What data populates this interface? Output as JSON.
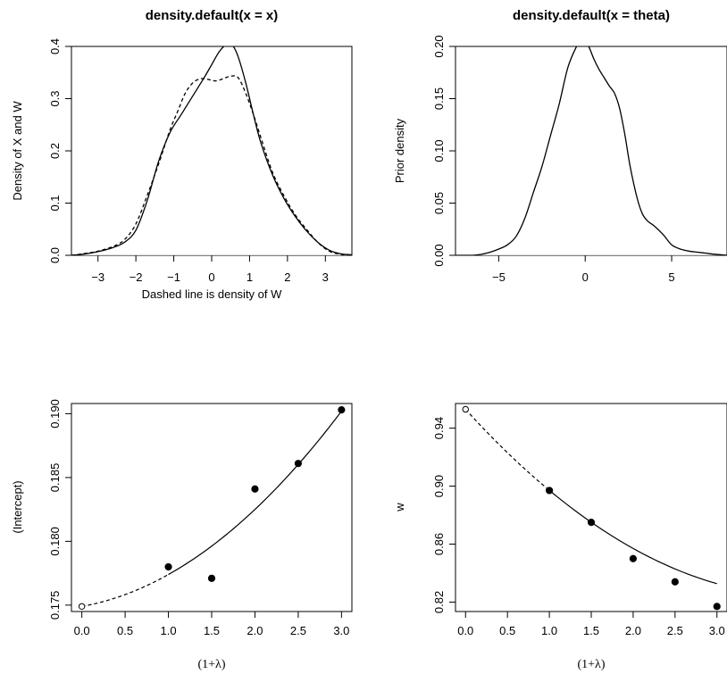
{
  "chart_data": [
    {
      "type": "line",
      "title": "density.default(x = x)",
      "xlabel": "Dashed line is density of W",
      "ylabel": "Density of X and W",
      "xlim": [
        -3.7,
        3.7
      ],
      "ylim": [
        0,
        0.4
      ],
      "xticks": [
        -3,
        -2,
        -1,
        0,
        1,
        2,
        3
      ],
      "yticks": [
        0.0,
        0.1,
        0.2,
        0.3,
        0.4
      ],
      "xtick_labels": [
        "−3",
        "−2",
        "−1",
        "0",
        "1",
        "2",
        "3"
      ],
      "ytick_labels": [
        "0.0",
        "0.1",
        "0.2",
        "0.3",
        "0.4"
      ],
      "zero_line": true,
      "series": [
        {
          "style": "solid",
          "x": [
            -3.7,
            -3.4,
            -3.0,
            -2.6,
            -2.3,
            -2.0,
            -1.7,
            -1.4,
            -1.1,
            -0.8,
            -0.5,
            -0.2,
            0.0,
            0.2,
            0.4,
            0.55,
            0.7,
            0.9,
            1.1,
            1.3,
            1.6,
            1.9,
            2.2,
            2.5,
            2.8,
            3.1,
            3.4,
            3.7
          ],
          "y": [
            0.0,
            0.002,
            0.007,
            0.015,
            0.025,
            0.048,
            0.105,
            0.18,
            0.235,
            0.27,
            0.305,
            0.34,
            0.365,
            0.39,
            0.404,
            0.402,
            0.38,
            0.33,
            0.27,
            0.215,
            0.155,
            0.11,
            0.075,
            0.047,
            0.025,
            0.01,
            0.003,
            0.001
          ]
        },
        {
          "style": "dashed",
          "x": [
            -3.7,
            -3.4,
            -3.0,
            -2.6,
            -2.3,
            -2.0,
            -1.7,
            -1.4,
            -1.1,
            -0.9,
            -0.7,
            -0.5,
            -0.3,
            -0.1,
            0.1,
            0.3,
            0.5,
            0.7,
            0.9,
            1.1,
            1.3,
            1.6,
            1.9,
            2.2,
            2.5,
            2.8,
            3.1,
            3.4,
            3.7
          ],
          "y": [
            0.0,
            0.003,
            0.008,
            0.017,
            0.03,
            0.06,
            0.115,
            0.175,
            0.24,
            0.275,
            0.31,
            0.33,
            0.338,
            0.337,
            0.334,
            0.338,
            0.343,
            0.34,
            0.31,
            0.27,
            0.225,
            0.16,
            0.115,
            0.078,
            0.05,
            0.025,
            0.008,
            0.002,
            0.0
          ]
        }
      ]
    },
    {
      "type": "line",
      "title": "density.default(x = theta)",
      "xlabel": "",
      "ylabel": "Prior density",
      "xlim": [
        -7.5,
        8.2
      ],
      "ylim": [
        0,
        0.2
      ],
      "xticks": [
        -5,
        0,
        5
      ],
      "yticks": [
        0.0,
        0.05,
        0.1,
        0.15,
        0.2
      ],
      "xtick_labels": [
        "−5",
        "0",
        "5"
      ],
      "ytick_labels": [
        "0.00",
        "0.05",
        "0.10",
        "0.15",
        "0.20"
      ],
      "zero_line": true,
      "series": [
        {
          "style": "solid",
          "x": [
            -7.5,
            -6.5,
            -6.0,
            -5.5,
            -5.0,
            -4.5,
            -4.0,
            -3.5,
            -3.0,
            -2.5,
            -2.0,
            -1.5,
            -1.0,
            -0.5,
            -0.3,
            -0.1,
            0.2,
            0.5,
            0.8,
            1.1,
            1.4,
            1.7,
            2.0,
            2.3,
            2.6,
            3.0,
            3.3,
            3.6,
            4.0,
            4.5,
            5.0,
            5.5,
            6.0,
            6.5,
            7.0,
            7.5,
            8.2
          ],
          "y": [
            0.0,
            0.0,
            0.001,
            0.003,
            0.006,
            0.01,
            0.018,
            0.035,
            0.06,
            0.085,
            0.115,
            0.145,
            0.18,
            0.2,
            0.205,
            0.205,
            0.2,
            0.188,
            0.178,
            0.17,
            0.162,
            0.155,
            0.14,
            0.115,
            0.085,
            0.055,
            0.04,
            0.033,
            0.028,
            0.02,
            0.01,
            0.006,
            0.004,
            0.003,
            0.002,
            0.001,
            0.0
          ]
        }
      ]
    },
    {
      "type": "scatter",
      "title": "",
      "xlabel": "(1+λ)",
      "ylabel": "(Intercept)",
      "xlim": [
        -0.12,
        3.12
      ],
      "ylim": [
        0.1745,
        0.1908
      ],
      "xticks": [
        0.0,
        0.5,
        1.0,
        1.5,
        2.0,
        2.5,
        3.0
      ],
      "yticks": [
        0.175,
        0.18,
        0.185,
        0.19
      ],
      "xtick_labels": [
        "0.0",
        "0.5",
        "1.0",
        "1.5",
        "2.0",
        "2.5",
        "3.0"
      ],
      "ytick_labels": [
        "0.175",
        "0.180",
        "0.185",
        "0.190"
      ],
      "points": [
        {
          "x": 1.0,
          "y": 0.178,
          "filled": true
        },
        {
          "x": 1.5,
          "y": 0.1771,
          "filled": true
        },
        {
          "x": 2.0,
          "y": 0.1841,
          "filled": true
        },
        {
          "x": 2.5,
          "y": 0.1861,
          "filled": true
        },
        {
          "x": 3.0,
          "y": 0.1903,
          "filled": true
        },
        {
          "x": 0.0,
          "y": 0.1749,
          "filled": false
        }
      ],
      "fit_quadratic": [
        0.1749,
        0.0012,
        0.0013
      ],
      "extrapolated_range": [
        0.0,
        1.0
      ],
      "fitted_range": [
        1.0,
        3.0
      ]
    },
    {
      "type": "scatter",
      "title": "",
      "xlabel": "(1+λ)",
      "ylabel": "w",
      "xlim": [
        -0.12,
        3.12
      ],
      "ylim": [
        0.8135,
        0.957
      ],
      "xticks": [
        0.0,
        0.5,
        1.0,
        1.5,
        2.0,
        2.5,
        3.0
      ],
      "yticks": [
        0.82,
        0.86,
        0.9,
        0.94
      ],
      "xtick_labels": [
        "0.0",
        "0.5",
        "1.0",
        "1.5",
        "2.0",
        "2.5",
        "3.0"
      ],
      "ytick_labels": [
        "0.82",
        "0.86",
        "0.90",
        "0.94"
      ],
      "points": [
        {
          "x": 1.0,
          "y": 0.897,
          "filled": true
        },
        {
          "x": 1.5,
          "y": 0.875,
          "filled": true
        },
        {
          "x": 2.0,
          "y": 0.85,
          "filled": true
        },
        {
          "x": 2.5,
          "y": 0.834,
          "filled": true
        },
        {
          "x": 3.0,
          "y": 0.817,
          "filled": true
        },
        {
          "x": 0.0,
          "y": 0.953,
          "filled": false
        }
      ],
      "fit_quadratic": [
        0.953,
        -0.0638,
        0.0079
      ],
      "extrapolated_range": [
        0.0,
        1.0
      ],
      "fitted_range": [
        1.0,
        3.0
      ]
    }
  ]
}
